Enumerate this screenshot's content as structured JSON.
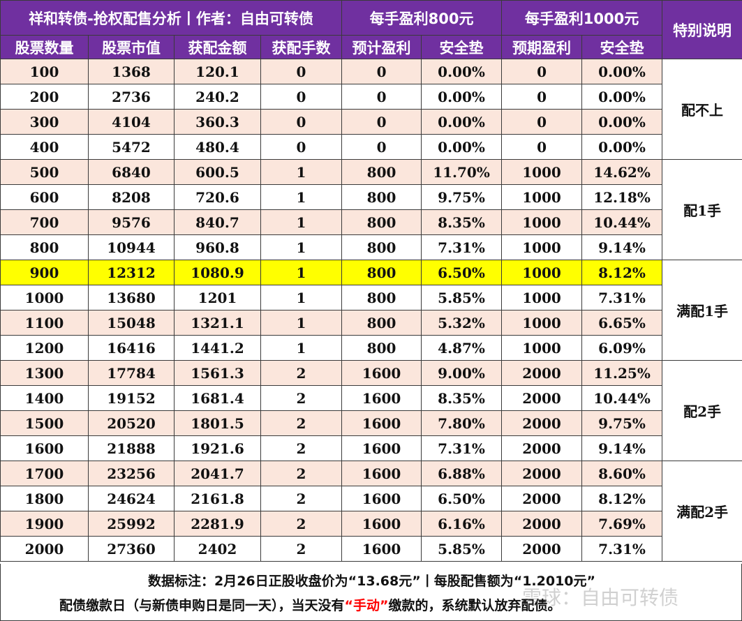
{
  "header": {
    "title": "祥和转债-抢权配售分析丨作者：自由可转债",
    "group_800": "每手盈利800元",
    "group_1000": "每手盈利1000元",
    "note_header": "特别说明",
    "columns": [
      "股票数量",
      "股票市值",
      "获配金额",
      "获配手数",
      "预计盈利",
      "安全垫",
      "预期盈利",
      "安全垫"
    ]
  },
  "rows": [
    [
      "100",
      "1368",
      "120.1",
      "0",
      "0",
      "0.00%",
      "0",
      "0.00%"
    ],
    [
      "200",
      "2736",
      "240.2",
      "0",
      "0",
      "0.00%",
      "0",
      "0.00%"
    ],
    [
      "300",
      "4104",
      "360.3",
      "0",
      "0",
      "0.00%",
      "0",
      "0.00%"
    ],
    [
      "400",
      "5472",
      "480.4",
      "0",
      "0",
      "0.00%",
      "0",
      "0.00%"
    ],
    [
      "500",
      "6840",
      "600.5",
      "1",
      "800",
      "11.70%",
      "1000",
      "14.62%"
    ],
    [
      "600",
      "8208",
      "720.6",
      "1",
      "800",
      "9.75%",
      "1000",
      "12.18%"
    ],
    [
      "700",
      "9576",
      "840.7",
      "1",
      "800",
      "8.35%",
      "1000",
      "10.44%"
    ],
    [
      "800",
      "10944",
      "960.8",
      "1",
      "800",
      "7.31%",
      "1000",
      "9.14%"
    ],
    [
      "900",
      "12312",
      "1080.9",
      "1",
      "800",
      "6.50%",
      "1000",
      "8.12%"
    ],
    [
      "1000",
      "13680",
      "1201",
      "1",
      "800",
      "5.85%",
      "1000",
      "7.31%"
    ],
    [
      "1100",
      "15048",
      "1321.1",
      "1",
      "800",
      "5.32%",
      "1000",
      "6.65%"
    ],
    [
      "1200",
      "16416",
      "1441.2",
      "1",
      "800",
      "4.87%",
      "1000",
      "6.09%"
    ],
    [
      "1300",
      "17784",
      "1561.3",
      "2",
      "1600",
      "9.00%",
      "2000",
      "11.25%"
    ],
    [
      "1400",
      "19152",
      "1681.4",
      "2",
      "1600",
      "8.35%",
      "2000",
      "10.44%"
    ],
    [
      "1500",
      "20520",
      "1801.5",
      "2",
      "1600",
      "7.80%",
      "2000",
      "9.75%"
    ],
    [
      "1600",
      "21888",
      "1921.6",
      "2",
      "1600",
      "7.31%",
      "2000",
      "9.14%"
    ],
    [
      "1700",
      "23256",
      "2041.7",
      "2",
      "1600",
      "6.88%",
      "2000",
      "8.60%"
    ],
    [
      "1800",
      "24624",
      "2161.8",
      "2",
      "1600",
      "6.50%",
      "2000",
      "8.12%"
    ],
    [
      "1900",
      "25992",
      "2281.9",
      "2",
      "1600",
      "6.16%",
      "2000",
      "7.69%"
    ],
    [
      "2000",
      "27360",
      "2402",
      "2",
      "1600",
      "5.85%",
      "2000",
      "7.31%"
    ]
  ],
  "highlight_row_index": 8,
  "notes": [
    {
      "label": "配不上",
      "start": 0,
      "span": 4
    },
    {
      "label": "配1手",
      "start": 4,
      "span": 4
    },
    {
      "label": "满配1手",
      "start": 8,
      "span": 4
    },
    {
      "label": "配2手",
      "start": 12,
      "span": 4
    },
    {
      "label": "满配2手",
      "start": 16,
      "span": 4
    }
  ],
  "footer": {
    "line1": "数据标注：2月26日正股收盘价为“13.68元”丨每股配售额为“1.2010元”",
    "line2_a": "配债缴款日（与新债申购日是同一天），当天没有",
    "line2_red": "“手动”",
    "line2_b": "缴款的，系统默认放弃配债。"
  },
  "watermark": "雪球：自由可转债",
  "colors": {
    "header_bg": "#7030a0",
    "stripe": "#fbe6dc",
    "highlight": "#ffff00",
    "accent_red": "#ff0000"
  }
}
